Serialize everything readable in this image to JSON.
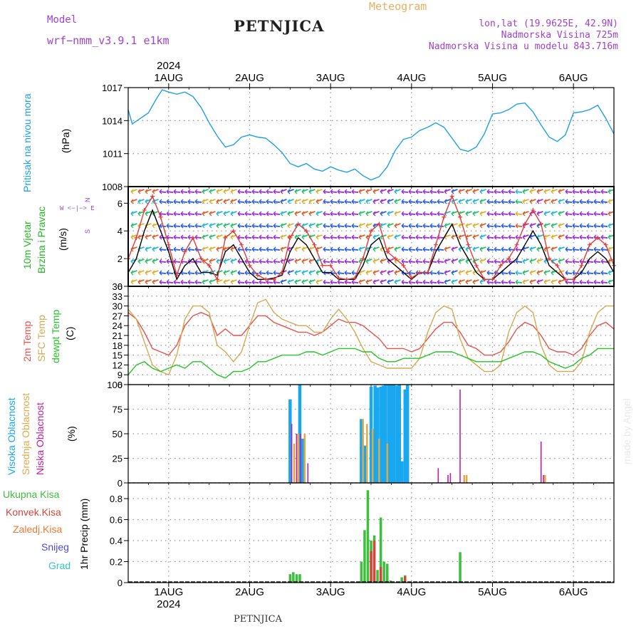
{
  "header": {
    "model_label": "Model",
    "model_name": "wrf−nmm_v3.9.1  e1km",
    "station_title": "PETNJICA",
    "meteogram_label": "Meteogram",
    "lonlat": "lon,lat (19.9625E, 42.9N)",
    "elevation": "Nadmorska Visina 725m",
    "model_elevation": "Nadmorska Visina u modelu 843.716m",
    "footer_station": "PETNJICA",
    "watermark": "made by Angel"
  },
  "time_axis": {
    "year": "2024",
    "labels": [
      "1AUG",
      "2AUG",
      "3AUG",
      "4AUG",
      "5AUG",
      "6AUG"
    ],
    "range_days": [
      -0.5,
      5.5
    ]
  },
  "legends": {
    "pressure": [
      "Pritisak na nivou mora",
      "(hPa)"
    ],
    "wind": [
      "10m Vjetar",
      "Brzina i Pravac",
      "(m/s)"
    ],
    "wind_compass": [
      "N",
      "W <−|−> E",
      "S"
    ],
    "temp": [
      "2m Temp",
      "SFC Temp",
      "dewpt Temp",
      "(C)"
    ],
    "cloud": [
      "Visoka Oblacnost",
      "Srednja Oblacnost",
      "Niska Oblacnost",
      "(%)"
    ],
    "precip": [
      "Ukupna Kisa",
      "Konvek.Kisa",
      "Zaledj.Kisa",
      "Snijeg",
      "Grad",
      "1hr Precip (mm)"
    ]
  },
  "colors": {
    "pressure": "#1ea0e6",
    "temp2m": "#e8524a",
    "sfctemp": "#d7a850",
    "dewpt": "#22c622",
    "cloud_high": "#18a8f0",
    "cloud_mid": "#e0a848",
    "cloud_low": "#c020a0",
    "precip_total": "#3cbf3c",
    "precip_conv": "#d8443c",
    "precip_frz": "#f07830",
    "snow": "#4a4ad8",
    "hail": "#30c8c0",
    "wind_speed": "#000000",
    "wind_gust": "#e03a3a",
    "title": "#202020",
    "purple_text": "#a040d0",
    "orange_text": "#e8b060"
  },
  "chart_data": [
    {
      "type": "line",
      "panel": "pressure",
      "ylabel": "(hPa)",
      "ylim": [
        1008,
        1017
      ],
      "yticks": [
        1008,
        1011,
        1014,
        1017
      ],
      "series": [
        {
          "name": "Pritisak na nivou mora",
          "x": [
            -0.5,
            -0.45,
            -0.35,
            -0.25,
            -0.15,
            -0.08,
            0,
            0.1,
            0.2,
            0.3,
            0.4,
            0.5,
            0.6,
            0.7,
            0.8,
            0.9,
            1.0,
            1.1,
            1.2,
            1.3,
            1.4,
            1.5,
            1.6,
            1.7,
            1.8,
            1.9,
            2.0,
            2.1,
            2.2,
            2.3,
            2.4,
            2.5,
            2.6,
            2.7,
            2.8,
            2.9,
            3.0,
            3.1,
            3.2,
            3.3,
            3.4,
            3.5,
            3.6,
            3.7,
            3.8,
            3.9,
            4.0,
            4.1,
            4.2,
            4.3,
            4.4,
            4.5,
            4.6,
            4.7,
            4.8,
            4.9,
            5.0,
            5.1,
            5.2,
            5.3,
            5.4,
            5.5
          ],
          "values": [
            1015,
            1013.7,
            1014.2,
            1014.7,
            1016,
            1016.8,
            1016.6,
            1016.4,
            1016.6,
            1016.2,
            1015.2,
            1013.8,
            1012.6,
            1011.6,
            1011.8,
            1012.5,
            1012.7,
            1012.5,
            1012.4,
            1011.8,
            1011.1,
            1010.1,
            1009.8,
            1010.1,
            1009.6,
            1009.4,
            1009.8,
            1009.5,
            1009.3,
            1009.6,
            1009.0,
            1008.6,
            1008.9,
            1009.8,
            1011.3,
            1012.3,
            1012.5,
            1013.1,
            1013.4,
            1013.8,
            1013.4,
            1012.4,
            1011.4,
            1011.2,
            1011.6,
            1012.8,
            1014.6,
            1014.7,
            1015.0,
            1015.5,
            1015.6,
            1014.8,
            1013.6,
            1012.5,
            1012.1,
            1012.7,
            1014.7,
            1014.8,
            1015.0,
            1015.4,
            1014.2,
            1012.8
          ]
        }
      ]
    },
    {
      "type": "line",
      "panel": "wind",
      "ylabel": "(m/s)",
      "ylim": [
        0,
        7.2
      ],
      "yticks": [
        0,
        2,
        4,
        6
      ],
      "series": [
        {
          "name": "Brzina",
          "x": [
            -0.5,
            -0.4,
            -0.3,
            -0.2,
            -0.1,
            0,
            0.1,
            0.2,
            0.3,
            0.4,
            0.5,
            0.6,
            0.7,
            0.8,
            0.9,
            1.0,
            1.1,
            1.2,
            1.3,
            1.4,
            1.5,
            1.6,
            1.7,
            1.8,
            1.9,
            2.0,
            2.1,
            2.2,
            2.3,
            2.4,
            2.5,
            2.6,
            2.7,
            2.8,
            2.9,
            3.0,
            3.1,
            3.2,
            3.3,
            3.4,
            3.5,
            3.6,
            3.7,
            3.8,
            3.9,
            4.0,
            4.1,
            4.2,
            4.3,
            4.4,
            4.5,
            4.6,
            4.7,
            4.8,
            4.9,
            5.0,
            5.1,
            5.2,
            5.3,
            5.4,
            5.5
          ],
          "values": [
            1.0,
            2.0,
            4.0,
            5.5,
            4.0,
            2.5,
            0.5,
            1.5,
            2.0,
            1.0,
            1.0,
            0.8,
            2.5,
            3.0,
            2.0,
            1.0,
            0.5,
            0.5,
            0.6,
            0.8,
            2.5,
            3.5,
            3.0,
            2.0,
            1.0,
            1.0,
            0.5,
            0.5,
            0.5,
            1.5,
            3.0,
            3.5,
            2.0,
            1.5,
            1.0,
            0.5,
            1.0,
            1.0,
            2.5,
            3.5,
            4.5,
            3.0,
            2.0,
            1.0,
            0.5,
            0.5,
            1.0,
            1.5,
            2.0,
            3.0,
            4.0,
            3.0,
            1.5,
            1.0,
            0.5,
            0.5,
            1.0,
            2.0,
            2.5,
            2.0,
            1.0
          ]
        },
        {
          "name": "Udar",
          "x": [
            -0.5,
            -0.4,
            -0.3,
            -0.2,
            -0.1,
            0,
            0.1,
            0.2,
            0.3,
            0.4,
            0.5,
            0.6,
            0.7,
            0.8,
            0.9,
            1.0,
            1.1,
            1.2,
            1.3,
            1.4,
            1.5,
            1.6,
            1.7,
            1.8,
            1.9,
            2.0,
            2.1,
            2.2,
            2.3,
            2.4,
            2.5,
            2.6,
            2.7,
            2.8,
            2.9,
            3.0,
            3.1,
            3.2,
            3.3,
            3.4,
            3.5,
            3.6,
            3.7,
            3.8,
            3.9,
            4.0,
            4.1,
            4.2,
            4.3,
            4.4,
            4.5,
            4.6,
            4.7,
            4.8,
            4.9,
            5.0,
            5.1,
            5.2,
            5.3,
            5.4,
            5.5
          ],
          "values": [
            2.0,
            3.5,
            5.5,
            6.5,
            5.0,
            3.0,
            0.8,
            2.5,
            3.5,
            2.0,
            1.5,
            0.5,
            3.5,
            4.0,
            3.0,
            1.5,
            0.8,
            0.5,
            0.5,
            1.0,
            3.5,
            4.5,
            4.0,
            3.0,
            1.5,
            1.5,
            0.6,
            0.5,
            0.6,
            2.0,
            4.0,
            4.5,
            2.5,
            2.0,
            1.5,
            0.6,
            1.0,
            1.0,
            3.0,
            5.0,
            6.5,
            5.0,
            3.0,
            1.5,
            0.5,
            0.5,
            1.5,
            2.0,
            3.0,
            4.5,
            5.5,
            4.5,
            2.0,
            1.5,
            0.5,
            0.5,
            1.5,
            3.0,
            3.5,
            3.0,
            1.5
          ]
        }
      ]
    },
    {
      "type": "line",
      "panel": "temperature",
      "ylabel": "(C)",
      "ylim": [
        6,
        36
      ],
      "yticks": [
        6,
        9,
        12,
        15,
        18,
        21,
        24,
        27,
        30,
        33,
        36
      ],
      "series": [
        {
          "name": "2m Temp",
          "x": [
            -0.5,
            -0.4,
            -0.3,
            -0.2,
            -0.1,
            0,
            0.1,
            0.2,
            0.3,
            0.4,
            0.5,
            0.6,
            0.7,
            0.8,
            0.9,
            1.0,
            1.1,
            1.2,
            1.3,
            1.4,
            1.5,
            1.6,
            1.7,
            1.8,
            1.9,
            2.0,
            2.1,
            2.2,
            2.3,
            2.4,
            2.5,
            2.6,
            2.7,
            2.8,
            2.9,
            3.0,
            3.1,
            3.2,
            3.3,
            3.4,
            3.5,
            3.6,
            3.7,
            3.8,
            3.9,
            4.0,
            4.1,
            4.2,
            4.3,
            4.4,
            4.5,
            4.6,
            4.7,
            4.8,
            4.9,
            5.0,
            5.1,
            5.2,
            5.3,
            5.4,
            5.5
          ],
          "values": [
            28,
            26,
            22,
            17,
            16,
            15,
            18,
            24,
            27,
            28,
            27,
            21,
            23,
            21,
            21,
            24,
            27,
            27,
            25,
            24,
            23,
            22,
            22,
            21,
            22,
            24,
            26,
            25,
            25,
            24,
            22,
            20,
            17,
            17,
            17,
            16,
            17,
            20,
            23,
            25,
            25,
            22,
            18,
            17,
            15,
            15,
            16,
            19,
            23,
            25,
            24,
            21,
            17,
            16,
            16,
            15,
            17,
            21,
            24,
            25,
            23
          ]
        },
        {
          "name": "SFC Temp",
          "x": [
            -0.5,
            -0.4,
            -0.3,
            -0.2,
            -0.1,
            0,
            0.1,
            0.2,
            0.3,
            0.4,
            0.5,
            0.6,
            0.7,
            0.8,
            0.9,
            1.0,
            1.1,
            1.2,
            1.3,
            1.4,
            1.5,
            1.6,
            1.7,
            1.8,
            1.9,
            2.0,
            2.1,
            2.2,
            2.3,
            2.4,
            2.5,
            2.6,
            2.7,
            2.8,
            2.9,
            3.0,
            3.1,
            3.2,
            3.3,
            3.4,
            3.5,
            3.6,
            3.7,
            3.8,
            3.9,
            4.0,
            4.1,
            4.2,
            4.3,
            4.4,
            4.5,
            4.6,
            4.7,
            4.8,
            4.9,
            5.0,
            5.1,
            5.2,
            5.3,
            5.4,
            5.5
          ],
          "values": [
            29,
            26,
            19,
            12,
            10,
            9,
            15,
            26,
            30,
            30,
            28,
            18,
            16,
            13,
            16,
            24,
            31,
            32,
            28,
            26,
            25,
            24,
            24,
            22,
            22,
            26,
            29,
            26,
            22,
            17,
            13,
            12,
            11,
            11,
            11,
            11,
            14,
            22,
            28,
            30,
            29,
            20,
            14,
            12,
            10,
            10,
            12,
            22,
            28,
            30,
            28,
            18,
            12,
            10,
            10,
            10,
            13,
            22,
            28,
            30,
            30
          ]
        },
        {
          "name": "dewpt Temp",
          "x": [
            -0.5,
            -0.4,
            -0.3,
            -0.2,
            -0.1,
            0,
            0.1,
            0.2,
            0.3,
            0.4,
            0.5,
            0.6,
            0.7,
            0.8,
            0.9,
            1.0,
            1.1,
            1.2,
            1.3,
            1.4,
            1.5,
            1.6,
            1.7,
            1.8,
            1.9,
            2.0,
            2.1,
            2.2,
            2.3,
            2.4,
            2.5,
            2.6,
            2.7,
            2.8,
            2.9,
            3.0,
            3.1,
            3.2,
            3.3,
            3.4,
            3.5,
            3.6,
            3.7,
            3.8,
            3.9,
            4.0,
            4.1,
            4.2,
            4.3,
            4.4,
            4.5,
            4.6,
            4.7,
            4.8,
            4.9,
            5.0,
            5.1,
            5.2,
            5.3,
            5.4,
            5.5
          ],
          "values": [
            9,
            12,
            13,
            11,
            10,
            11,
            12,
            11,
            13,
            13,
            11,
            9,
            8,
            10,
            10,
            11,
            13,
            13,
            14,
            15,
            15,
            15,
            16,
            16,
            15,
            16,
            17,
            17,
            17,
            16,
            16,
            14,
            13,
            13,
            14,
            14,
            14,
            15,
            16,
            16,
            16,
            15,
            14,
            13,
            13,
            13,
            13,
            14,
            15,
            16,
            16,
            15,
            13,
            12,
            11,
            12,
            14,
            15,
            17,
            17,
            17
          ]
        }
      ]
    },
    {
      "type": "bar",
      "panel": "cloud",
      "ylabel": "(%)",
      "ylim": [
        0,
        100
      ],
      "yticks": [
        0,
        25,
        50,
        75,
        100
      ],
      "series": [
        {
          "name": "Visoka Oblacnost",
          "x": [
            1.5,
            1.62,
            1.65,
            2.38,
            2.42,
            2.5,
            2.55,
            2.58,
            2.62,
            2.65,
            2.68,
            2.72,
            2.75,
            2.78,
            2.82,
            2.85,
            2.88,
            2.92,
            2.95
          ],
          "values": [
            85,
            100,
            45,
            65,
            38,
            98,
            99,
            97,
            98,
            99,
            100,
            100,
            100,
            100,
            99,
            100,
            22,
            95,
            100
          ]
        },
        {
          "name": "Srednja Oblacnost",
          "x": [
            1.55,
            1.6,
            1.68,
            2.4,
            2.45,
            2.52,
            2.6,
            2.7,
            3.65,
            3.68,
            4.65
          ],
          "values": [
            40,
            50,
            50,
            65,
            60,
            55,
            45,
            40,
            8,
            8,
            8
          ]
        },
        {
          "name": "Niska Oblacnost",
          "x": [
            1.52,
            1.58,
            1.63,
            1.72,
            3.33,
            3.45,
            3.48,
            3.6,
            4.6,
            4.63
          ],
          "values": [
            60,
            50,
            50,
            20,
            15,
            8,
            10,
            95,
            42,
            8
          ]
        }
      ]
    },
    {
      "type": "bar",
      "panel": "precip",
      "ylabel": "1hr Precip (mm)",
      "ylim": [
        0,
        0.95
      ],
      "yticks": [
        0,
        0.2,
        0.4,
        0.6,
        0.8
      ],
      "series": [
        {
          "name": "Ukupna Kisa",
          "x": [
            1.5,
            1.54,
            1.58,
            1.62,
            2.38,
            2.42,
            2.46,
            2.5,
            2.54,
            2.58,
            2.62,
            2.66,
            2.7,
            2.74,
            2.88,
            2.92,
            3.6
          ],
          "values": [
            0.08,
            0.1,
            0.08,
            0.08,
            0.2,
            0.5,
            0.88,
            0.4,
            0.45,
            0.12,
            0.62,
            0.2,
            0.18,
            0.02,
            0.05,
            0.07,
            0.29
          ]
        },
        {
          "name": "Konvek.Kisa",
          "x": [
            2.5,
            2.54,
            2.62,
            2.92
          ],
          "values": [
            0.3,
            0.4,
            0.15,
            0.06
          ]
        }
      ]
    }
  ]
}
